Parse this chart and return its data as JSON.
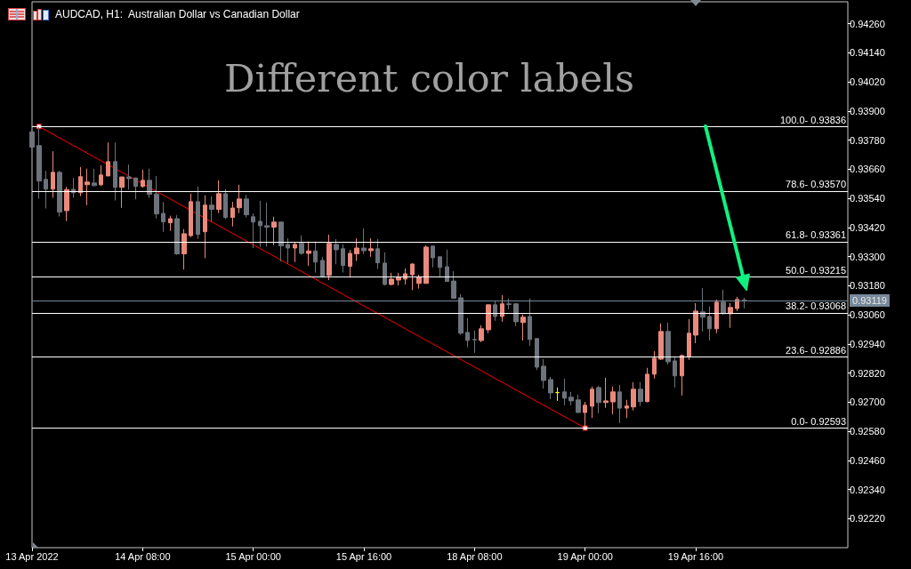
{
  "chart_data": {
    "type": "candlestick",
    "title": "AUDCAD, H1:  Australian Dollar vs Canadian Dollar",
    "annotations": [
      "Different color labels",
      {
        "text": "100.0-",
        "y": 0.93836
      },
      {
        "text": "78.6-",
        "y": 0.9357
      },
      {
        "text": "61.8-",
        "y": 0.93361
      },
      {
        "text": "50.0-",
        "y": 0.93215
      },
      {
        "text": "38.2-",
        "y": 0.93068
      },
      {
        "text": "23.6-",
        "y": 0.92886
      },
      {
        "text": "0.0-",
        "y": 0.92593
      }
    ],
    "categories": [
      "13 Apr 2022",
      null,
      null,
      null,
      null,
      null,
      null,
      null,
      null,
      null,
      null,
      null,
      null,
      null,
      null,
      null,
      "14 Apr 08:00",
      null,
      null,
      null,
      null,
      null,
      null,
      null,
      null,
      null,
      null,
      null,
      null,
      null,
      null,
      null,
      "15 Apr 00:00",
      null,
      null,
      null,
      null,
      null,
      null,
      null,
      null,
      null,
      null,
      null,
      null,
      null,
      null,
      null,
      "15 Apr 16:00",
      null,
      null,
      null,
      null,
      null,
      null,
      null,
      null,
      null,
      null,
      null,
      null,
      null,
      null,
      null,
      "18 Apr 08:00",
      null,
      null,
      null,
      null,
      null,
      null,
      null,
      null,
      null,
      null,
      null,
      null,
      null,
      null,
      null,
      "19 Apr 00:00",
      null,
      null,
      null,
      null,
      null,
      null,
      null,
      null,
      null,
      null,
      null,
      null,
      null,
      null,
      null,
      "19 Apr 16:00",
      null,
      null,
      null,
      null,
      null,
      null,
      null,
      null,
      null,
      null,
      null,
      null,
      null,
      null,
      null,
      null,
      null,
      null,
      null,
      null,
      null,
      null
    ],
    "ohlc": [
      [
        0.93814,
        0.9382,
        0.93745,
        0.93751
      ],
      [
        0.93757,
        0.93836,
        0.93538,
        0.93611
      ],
      [
        0.93618,
        0.93653,
        0.93498,
        0.93578
      ],
      [
        0.93578,
        0.93734,
        0.93542,
        0.93647
      ],
      [
        0.93647,
        0.93653,
        0.93465,
        0.93483
      ],
      [
        0.93489,
        0.93587,
        0.93446,
        0.93576
      ],
      [
        0.93577,
        0.93624,
        0.93542,
        0.93563
      ],
      [
        0.93563,
        0.93669,
        0.93549,
        0.93629
      ],
      [
        0.93596,
        0.93662,
        0.93512,
        0.93607
      ],
      [
        0.93603,
        0.93662,
        0.9359,
        0.93592
      ],
      [
        0.93596,
        0.93676,
        0.9359,
        0.93636
      ],
      [
        0.93632,
        0.9377,
        0.93632,
        0.93691
      ],
      [
        0.93691,
        0.9377,
        0.93531,
        0.93585
      ],
      [
        0.93585,
        0.93628,
        0.93501,
        0.93628
      ],
      [
        0.93628,
        0.93679,
        0.93576,
        0.93621
      ],
      [
        0.93624,
        0.93624,
        0.93536,
        0.93589
      ],
      [
        0.93589,
        0.93658,
        0.93584,
        0.93614
      ],
      [
        0.93614,
        0.93662,
        0.93542,
        0.93556
      ],
      [
        0.93558,
        0.93632,
        0.93457,
        0.93476
      ],
      [
        0.93478,
        0.93525,
        0.93402,
        0.93443
      ],
      [
        0.93439,
        0.93468,
        0.93406,
        0.93456
      ],
      [
        0.93456,
        0.93471,
        0.93307,
        0.93311
      ],
      [
        0.93311,
        0.93413,
        0.93246,
        0.93394
      ],
      [
        0.93386,
        0.93559,
        0.9338,
        0.93526
      ],
      [
        0.93526,
        0.93588,
        0.93373,
        0.93391
      ],
      [
        0.93402,
        0.93552,
        0.93293,
        0.93512
      ],
      [
        0.93512,
        0.93548,
        0.93443,
        0.93494
      ],
      [
        0.93494,
        0.93614,
        0.93479,
        0.93559
      ],
      [
        0.93559,
        0.93577,
        0.93454,
        0.93461
      ],
      [
        0.93461,
        0.93525,
        0.93424,
        0.935
      ],
      [
        0.93501,
        0.93596,
        0.93479,
        0.93537
      ],
      [
        0.93537,
        0.93555,
        0.93461,
        0.93472
      ],
      [
        0.93464,
        0.93478,
        0.93335,
        0.93442
      ],
      [
        0.93445,
        0.9353,
        0.9334,
        0.93427
      ],
      [
        0.93427,
        0.93523,
        0.9334,
        0.93421
      ],
      [
        0.93421,
        0.93464,
        0.93347,
        0.93442
      ],
      [
        0.93442,
        0.93442,
        0.9328,
        0.93344
      ],
      [
        0.9335,
        0.93375,
        0.93271,
        0.93335
      ],
      [
        0.93335,
        0.93357,
        0.93277,
        0.9335
      ],
      [
        0.93354,
        0.93387,
        0.93307,
        0.93313
      ],
      [
        0.93313,
        0.93362,
        0.93262,
        0.93323
      ],
      [
        0.93323,
        0.93362,
        0.93234,
        0.93277
      ],
      [
        0.93284,
        0.93299,
        0.93212,
        0.93216
      ],
      [
        0.93222,
        0.9339,
        0.93203,
        0.93354
      ],
      [
        0.9335,
        0.93372,
        0.93268,
        0.93328
      ],
      [
        0.93332,
        0.9335,
        0.93234,
        0.93263
      ],
      [
        0.9326,
        0.93327,
        0.93213,
        0.93313
      ],
      [
        0.93311,
        0.93375,
        0.93282,
        0.93335
      ],
      [
        0.93335,
        0.93416,
        0.93311,
        0.93324
      ],
      [
        0.93324,
        0.93375,
        0.93299,
        0.93332
      ],
      [
        0.93332,
        0.93372,
        0.93249,
        0.93274
      ],
      [
        0.93273,
        0.93317,
        0.93181,
        0.93185
      ],
      [
        0.93185,
        0.93233,
        0.93181,
        0.93207
      ],
      [
        0.93203,
        0.93233,
        0.93181,
        0.93216
      ],
      [
        0.93207,
        0.93251,
        0.93185,
        0.93229
      ],
      [
        0.93225,
        0.93273,
        0.93161,
        0.93269
      ],
      [
        0.93189,
        0.93225,
        0.93168,
        0.93216
      ],
      [
        0.93189,
        0.93346,
        0.93189,
        0.93339
      ],
      [
        0.93343,
        0.93343,
        0.93255,
        0.93295
      ],
      [
        0.93299,
        0.93299,
        0.93213,
        0.93255
      ],
      [
        0.93258,
        0.93328,
        0.93197,
        0.93197
      ],
      [
        0.93199,
        0.9324,
        0.93128,
        0.93128
      ],
      [
        0.9313,
        0.93145,
        0.92977,
        0.92984
      ],
      [
        0.92987,
        0.93046,
        0.92926,
        0.92954
      ],
      [
        0.92958,
        0.92995,
        0.92903,
        0.92957
      ],
      [
        0.92954,
        0.93017,
        0.92947,
        0.93002
      ],
      [
        0.92998,
        0.93101,
        0.92984,
        0.93101
      ],
      [
        0.93101,
        0.93116,
        0.93035,
        0.93053
      ],
      [
        0.93053,
        0.93141,
        0.93031,
        0.93105
      ],
      [
        0.93105,
        0.93127,
        0.93083,
        0.93102
      ],
      [
        0.93105,
        0.93108,
        0.93013,
        0.93031
      ],
      [
        0.93028,
        0.93061,
        0.92954,
        0.9305
      ],
      [
        0.93053,
        0.93127,
        0.92932,
        0.92958
      ],
      [
        0.92962,
        0.92962,
        0.92833,
        0.92844
      ],
      [
        0.92848,
        0.92877,
        0.92756,
        0.92789
      ],
      [
        0.92793,
        0.92804,
        0.92712,
        0.92738
      ],
      [
        0.92739,
        0.9276,
        0.92705,
        0.92739
      ],
      [
        0.92742,
        0.92797,
        0.92687,
        0.92716
      ],
      [
        0.9272,
        0.92742,
        0.92687,
        0.92705
      ],
      [
        0.92709,
        0.92731,
        0.92657,
        0.92657
      ],
      [
        0.92657,
        0.92701,
        0.92593,
        0.92687
      ],
      [
        0.92683,
        0.92764,
        0.92635,
        0.92753
      ],
      [
        0.9276,
        0.92767,
        0.92654,
        0.92698
      ],
      [
        0.92698,
        0.928,
        0.92676,
        0.92705
      ],
      [
        0.92701,
        0.92764,
        0.9265,
        0.92742
      ],
      [
        0.92742,
        0.92771,
        0.92614,
        0.92675
      ],
      [
        0.92675,
        0.92709,
        0.92634,
        0.92684
      ],
      [
        0.9268,
        0.92782,
        0.92666,
        0.92753
      ],
      [
        0.92753,
        0.92782,
        0.92684,
        0.92702
      ],
      [
        0.92702,
        0.92841,
        0.92699,
        0.92815
      ],
      [
        0.92815,
        0.9291,
        0.92797,
        0.92881
      ],
      [
        0.92877,
        0.93024,
        0.92874,
        0.92991
      ],
      [
        0.92991,
        0.93028,
        0.92855,
        0.92866
      ],
      [
        0.9287,
        0.92885,
        0.9276,
        0.92808
      ],
      [
        0.92808,
        0.92896,
        0.92727,
        0.92892
      ],
      [
        0.92888,
        0.93042,
        0.92874,
        0.92984
      ],
      [
        0.92976,
        0.93108,
        0.92943,
        0.93075
      ],
      [
        0.93072,
        0.9317,
        0.92991,
        0.9305
      ],
      [
        0.93053,
        0.93094,
        0.92954,
        0.93002
      ],
      [
        0.93002,
        0.93123,
        0.92984,
        0.93112
      ],
      [
        0.93112,
        0.93163,
        0.93061,
        0.93064
      ],
      [
        0.93064,
        0.93108,
        0.93006,
        0.9309
      ],
      [
        0.93086,
        0.93134,
        0.93075,
        0.93123
      ],
      [
        0.93121,
        0.9313,
        0.93086,
        0.93119
      ],
      null,
      null,
      null,
      null,
      null,
      null,
      null,
      null,
      null,
      null,
      null,
      null,
      null,
      null,
      null
    ],
    "colors": [
      "#6d737b",
      "#6d737b",
      "#6d737b",
      "#ea8a7d",
      "#6d737b",
      "#ea8a7d",
      "#6d737b",
      "#ea8a7d",
      "#ea8a7d",
      "#6d737b",
      "#ea8a7d",
      "#ea8a7d",
      "#6d737b",
      "#ea8a7d",
      "#6d737b",
      "#6d737b",
      "#ea8a7d",
      "#6d737b",
      "#6d737b",
      "#6d737b",
      "#ea8a7d",
      "#6d737b",
      "#ea8a7d",
      "#ea8a7d",
      "#6d737b",
      "#ea8a7d",
      "#6d737b",
      "#ea8a7d",
      "#6d737b",
      "#ea8a7d",
      "#ea8a7d",
      "#6d737b",
      "#6d737b",
      "#6d737b",
      "#6d737b",
      "#ea8a7d",
      "#6d737b",
      "#6d737b",
      "#ea8a7d",
      "#6d737b",
      "#ea8a7d",
      "#6d737b",
      "#6d737b",
      "#ea8a7d",
      "#6d737b",
      "#6d737b",
      "#ea8a7d",
      "#ea8a7d",
      "#6d737b",
      "#ea8a7d",
      "#6d737b",
      "#6d737b",
      "#ea8a7d",
      "#ea8a7d",
      "#ea8a7d",
      "#ea8a7d",
      "#ea8a7d",
      "#ea8a7d",
      "#6d737b",
      "#6d737b",
      "#6d737b",
      "#6d737b",
      "#6d737b",
      "#6d737b",
      "#6d737b",
      "#ea8a7d",
      "#ea8a7d",
      "#6d737b",
      "#ea8a7d",
      "#6d737b",
      "#6d737b",
      "#ea8a7d",
      "#6d737b",
      "#6d737b",
      "#6d737b",
      "#6d737b",
      "#ffff00",
      "#6d737b",
      "#6d737b",
      "#6d737b",
      "#ea8a7d",
      "#ea8a7d",
      "#6d737b",
      "#ea8a7d",
      "#ea8a7d",
      "#6d737b",
      "#ea8a7d",
      "#ea8a7d",
      "#6d737b",
      "#ea8a7d",
      "#ea8a7d",
      "#ea8a7d",
      "#6d737b",
      "#6d737b",
      "#ea8a7d",
      "#ea8a7d",
      "#ea8a7d",
      "#6d737b",
      "#6d737b",
      "#ea8a7d",
      "#6d737b",
      "#ea8a7d",
      "#ea8a7d",
      "#6d737b",
      null,
      null,
      null,
      null,
      null,
      null,
      null,
      null,
      null,
      null,
      null,
      null,
      null,
      null,
      null
    ],
    "series": [
      {
        "type": "line",
        "color": "#ff0000",
        "values": [
          null,
          0.93836,
          null,
          null,
          null,
          null,
          null,
          null,
          null,
          null,
          null,
          null,
          null,
          null,
          null,
          null,
          null,
          null,
          null,
          null,
          null,
          null,
          null,
          null,
          null,
          null,
          null,
          null,
          null,
          null,
          null,
          null,
          null,
          null,
          null,
          null,
          null,
          null,
          null,
          null,
          null,
          null,
          null,
          null,
          null,
          null,
          null,
          null,
          null,
          null,
          null,
          null,
          null,
          null,
          null,
          null,
          null,
          null,
          null,
          null,
          null,
          null,
          null,
          null,
          null,
          null,
          null,
          null,
          null,
          null,
          null,
          null,
          null,
          null,
          null,
          null,
          null,
          null,
          null,
          null,
          0.92593,
          null,
          null,
          null,
          null,
          null,
          null,
          null,
          null,
          null,
          null,
          null,
          null,
          null,
          null,
          null,
          null,
          null,
          null,
          null,
          null,
          null,
          null,
          null,
          null,
          null,
          null,
          null,
          null,
          null,
          null,
          null,
          null,
          null,
          null,
          null,
          null,
          null,
          null
        ]
      }
    ],
    "marker": "square",
    "ylim": [
      0.921,
      0.9435
    ],
    "yticks": [
      {
        "value": 0.9222,
        "label": "0.92220"
      },
      {
        "value": 0.9234,
        "label": "0.92340"
      },
      {
        "value": 0.9246,
        "label": "0.92460"
      },
      {
        "value": 0.9258,
        "label": "0.92580"
      },
      {
        "value": 0.927,
        "label": "0.92700"
      },
      {
        "value": 0.9282,
        "label": "0.92820"
      },
      {
        "value": 0.9294,
        "label": "0.92940"
      },
      {
        "value": 0.9306,
        "label": "0.93060"
      },
      {
        "value": 0.9318,
        "label": "0.93180"
      },
      {
        "value": 0.933,
        "label": "0.93300"
      },
      {
        "value": 0.9342,
        "label": "0.93420"
      },
      {
        "value": 0.9354,
        "label": "0.93540"
      },
      {
        "value": 0.9366,
        "label": "0.93660"
      },
      {
        "value": 0.9378,
        "label": "0.93780"
      },
      {
        "value": 0.939,
        "label": "0.93900"
      },
      {
        "value": 0.9402,
        "label": "0.94020"
      },
      {
        "value": 0.9414,
        "label": "0.94140"
      },
      {
        "value": 0.9426,
        "label": "0.94260"
      }
    ],
    "ref_lines": [
      {
        "axis": "y",
        "value": 0.93836,
        "label": "0.93836"
      },
      {
        "axis": "y",
        "value": 0.9357,
        "label": "0.93570"
      },
      {
        "axis": "y",
        "value": 0.93361,
        "label": "0.93361"
      },
      {
        "axis": "y",
        "value": 0.93215,
        "label": "0.93215"
      },
      {
        "axis": "y",
        "value": 0.93068,
        "label": "0.93068"
      },
      {
        "axis": "y",
        "value": 0.92886,
        "label": "0.92886"
      },
      {
        "axis": "y",
        "value": 0.92593,
        "label": "0.92593"
      },
      {
        "axis": "y",
        "value": 0.93119,
        "label": "0.93119",
        "color": "#778899"
      }
    ]
  }
}
